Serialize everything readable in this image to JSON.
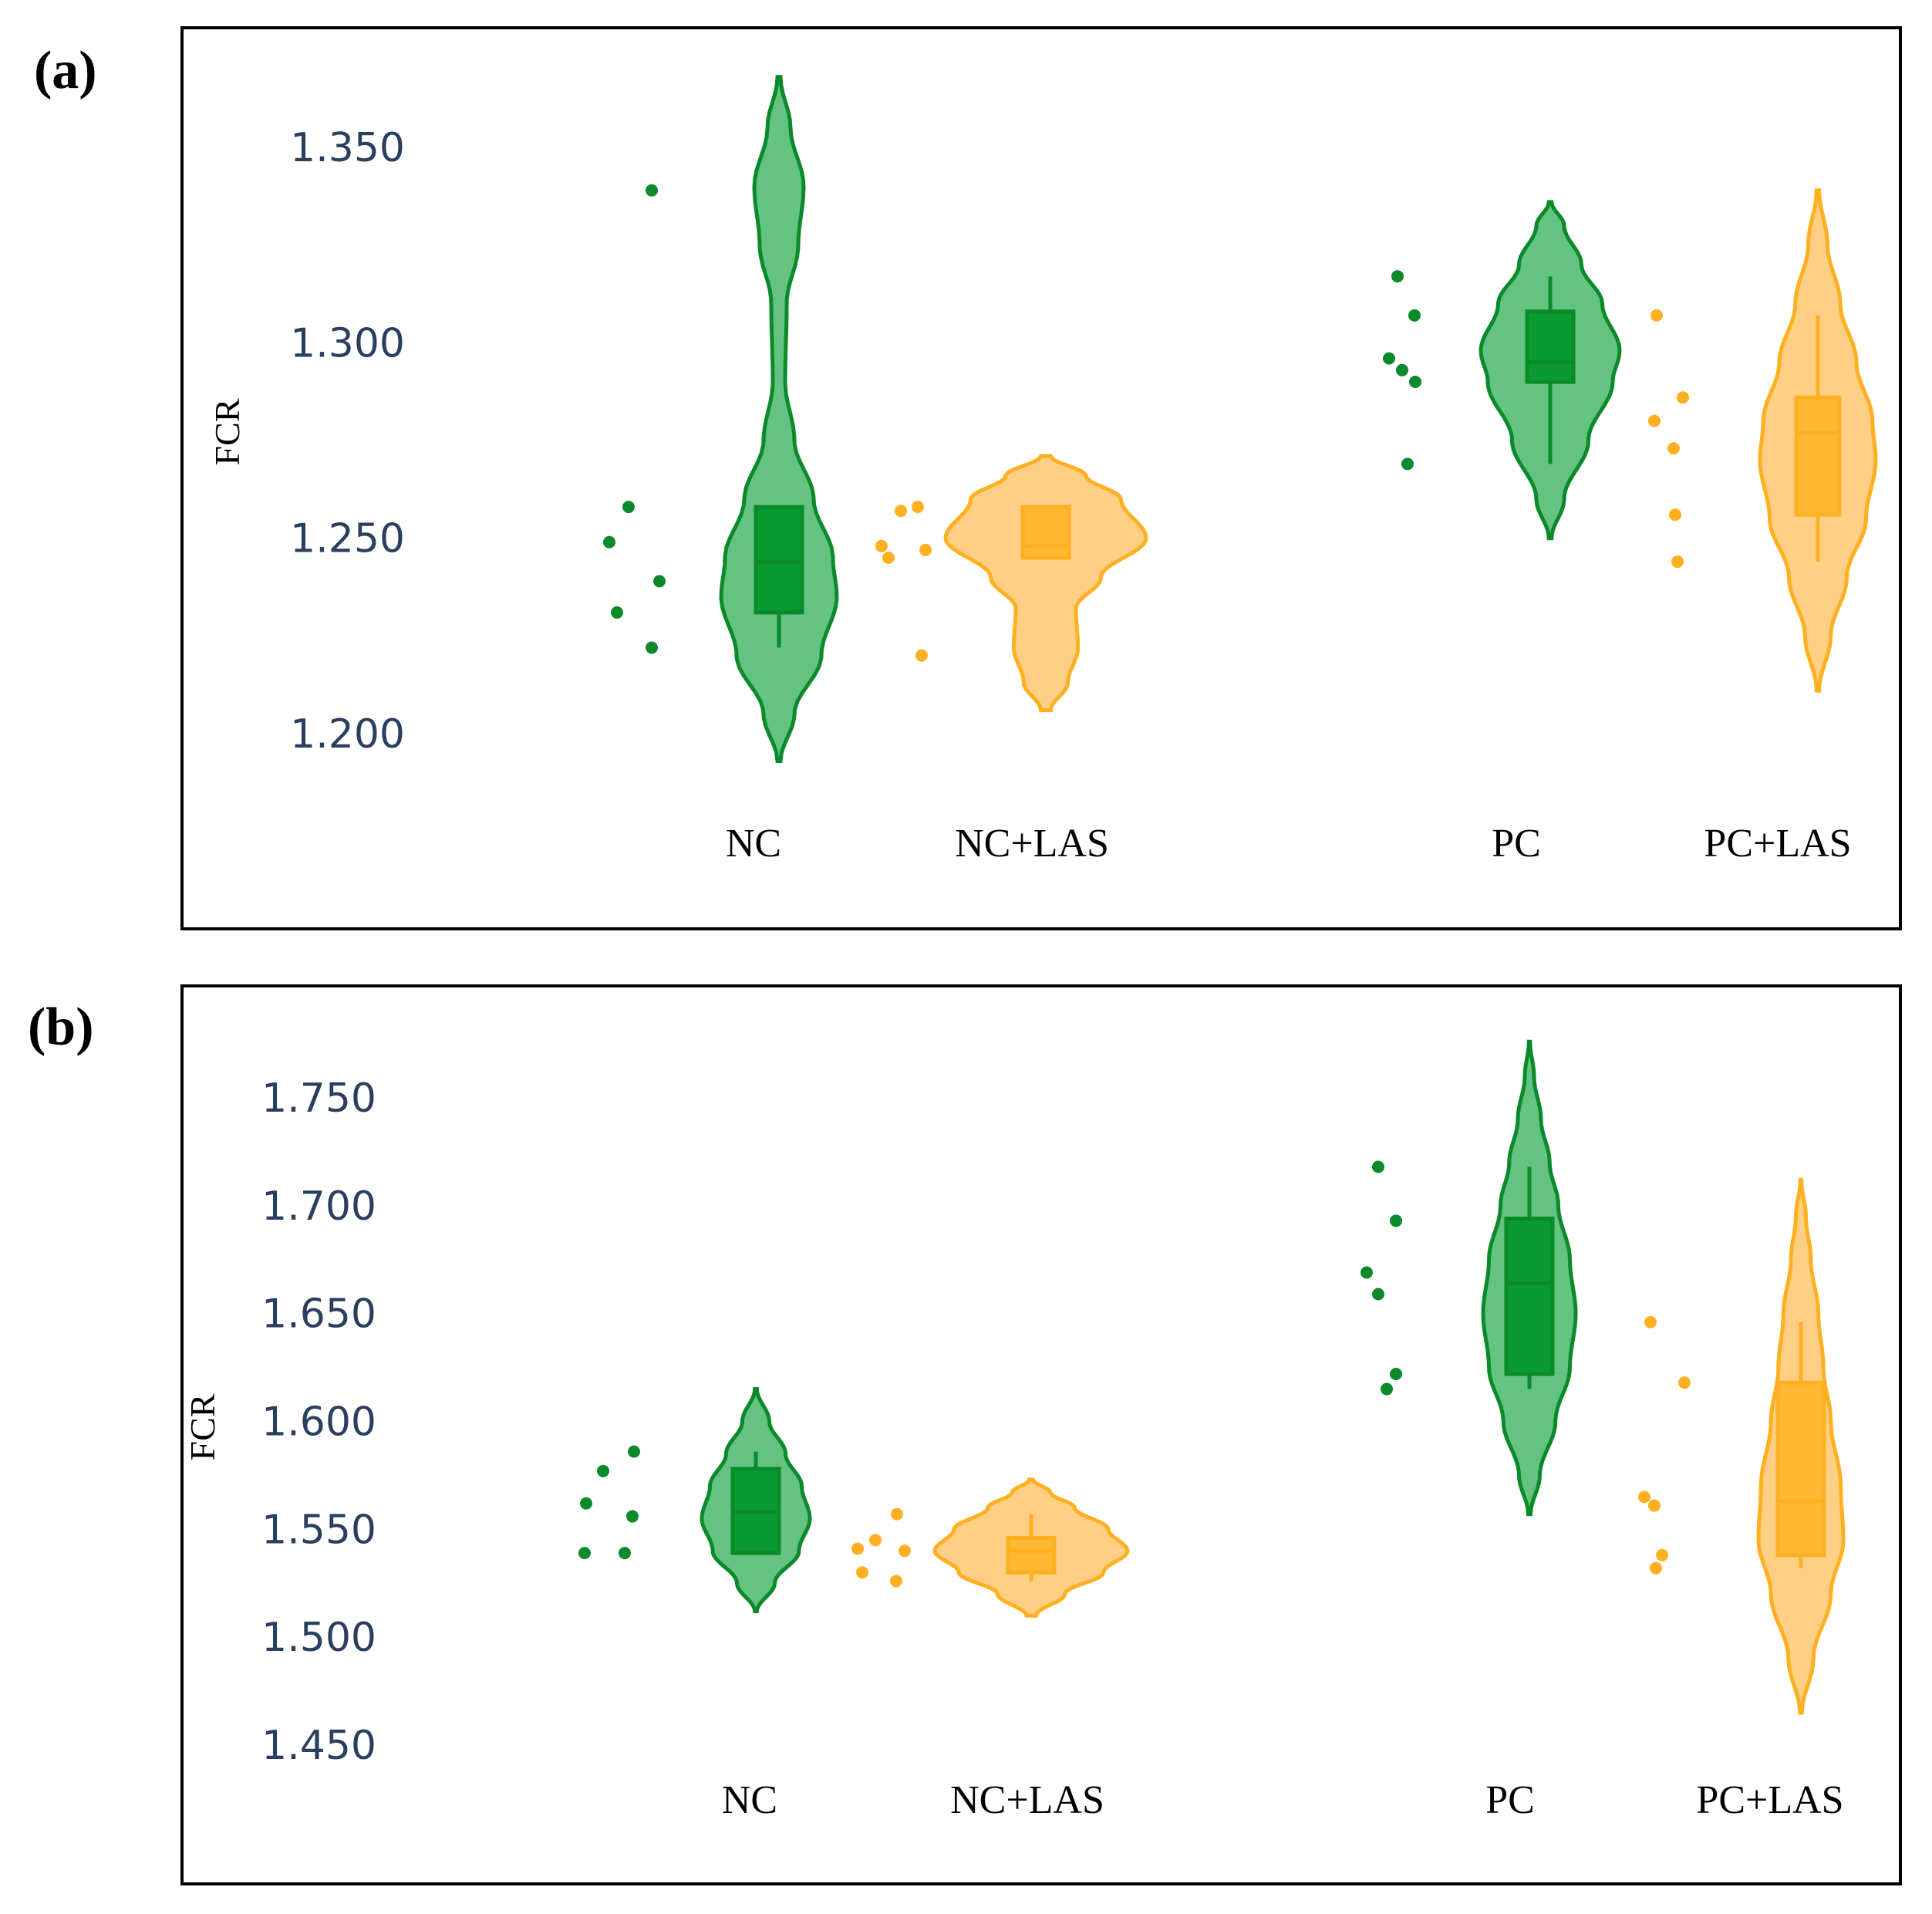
{
  "colors": {
    "nc_green_fill": "#5cc07a",
    "nc_green_line": "#0a8a2a",
    "nc_green_box": "#0a9a30",
    "las_orange_fill": "#ffcc80",
    "las_orange_line": "#ffb020",
    "las_orange_box": "#ffb833",
    "tick_color": "#2a3f5f"
  },
  "chart_data": [
    {
      "panel_label": "(a)",
      "type": "violin",
      "ylabel": "FCR",
      "ylim": [
        1.17,
        1.37
      ],
      "yticks": [
        "1.200",
        "1.250",
        "1.300",
        "1.350"
      ],
      "ytick_values": [
        1.2,
        1.25,
        1.3,
        1.35
      ],
      "categories": [
        "NC",
        "NC+LAS",
        "PC",
        "PC+LAS"
      ],
      "series": [
        {
          "name": "NC",
          "color": "green",
          "points": [
            1.339,
            1.258,
            1.249,
            1.239,
            1.231,
            1.222
          ],
          "box": {
            "q1": 1.231,
            "median": 1.244,
            "q3": 1.258,
            "whisker_low": 1.222,
            "whisker_high": 1.258
          },
          "violin_range": [
            1.193,
            1.368
          ],
          "density": [
            [
              1.193,
              0.02
            ],
            [
              1.205,
              0.2
            ],
            [
              1.22,
              0.55
            ],
            [
              1.235,
              0.75
            ],
            [
              1.245,
              0.7
            ],
            [
              1.26,
              0.45
            ],
            [
              1.275,
              0.2
            ],
            [
              1.29,
              0.08
            ],
            [
              1.31,
              0.1
            ],
            [
              1.325,
              0.25
            ],
            [
              1.34,
              0.32
            ],
            [
              1.355,
              0.15
            ],
            [
              1.368,
              0.02
            ]
          ]
        },
        {
          "name": "NC+LAS",
          "color": "orange",
          "points": [
            1.258,
            1.257,
            1.248,
            1.247,
            1.245,
            1.22
          ],
          "box": {
            "q1": 1.245,
            "median": 1.248,
            "q3": 1.258,
            "whisker_low": 1.245,
            "whisker_high": 1.258
          },
          "violin_range": [
            1.206,
            1.271
          ],
          "density": [
            [
              1.206,
              0.05
            ],
            [
              1.213,
              0.22
            ],
            [
              1.222,
              0.32
            ],
            [
              1.232,
              0.3
            ],
            [
              1.24,
              0.55
            ],
            [
              1.25,
              1.0
            ],
            [
              1.26,
              0.75
            ],
            [
              1.266,
              0.4
            ],
            [
              1.271,
              0.05
            ]
          ]
        },
        {
          "name": "PC",
          "color": "green",
          "points": [
            1.317,
            1.307,
            1.296,
            1.293,
            1.29,
            1.269
          ],
          "box": {
            "q1": 1.29,
            "median": 1.295,
            "q3": 1.308,
            "whisker_low": 1.269,
            "whisker_high": 1.317
          },
          "violin_range": [
            1.25,
            1.336
          ],
          "density": [
            [
              1.25,
              0.02
            ],
            [
              1.26,
              0.2
            ],
            [
              1.275,
              0.55
            ],
            [
              1.29,
              0.9
            ],
            [
              1.298,
              1.0
            ],
            [
              1.31,
              0.75
            ],
            [
              1.32,
              0.45
            ],
            [
              1.33,
              0.2
            ],
            [
              1.336,
              0.02
            ]
          ]
        },
        {
          "name": "PC+LAS",
          "color": "orange",
          "points": [
            1.307,
            1.286,
            1.28,
            1.273,
            1.256,
            1.244
          ],
          "box": {
            "q1": 1.256,
            "median": 1.277,
            "q3": 1.286,
            "whisker_low": 1.244,
            "whisker_high": 1.307
          },
          "violin_range": [
            1.211,
            1.339
          ],
          "density": [
            [
              1.211,
              0.02
            ],
            [
              1.225,
              0.2
            ],
            [
              1.24,
              0.45
            ],
            [
              1.255,
              0.75
            ],
            [
              1.27,
              0.9
            ],
            [
              1.28,
              0.85
            ],
            [
              1.295,
              0.6
            ],
            [
              1.31,
              0.35
            ],
            [
              1.325,
              0.15
            ],
            [
              1.339,
              0.02
            ]
          ]
        }
      ]
    },
    {
      "panel_label": "(b)",
      "type": "violin",
      "ylabel": "FCR",
      "ylim": [
        1.435,
        1.785
      ],
      "yticks": [
        "1.450",
        "1.500",
        "1.550",
        "1.600",
        "1.650",
        "1.700",
        "1.750"
      ],
      "ytick_values": [
        1.45,
        1.5,
        1.55,
        1.6,
        1.65,
        1.7,
        1.75
      ],
      "categories": [
        "NC",
        "NC+LAS",
        "PC",
        "PC+LAS"
      ],
      "series": [
        {
          "name": "NC",
          "color": "green",
          "points": [
            1.586,
            1.577,
            1.562,
            1.556,
            1.539,
            1.539
          ],
          "box": {
            "q1": 1.539,
            "median": 1.558,
            "q3": 1.578,
            "whisker_low": 1.539,
            "whisker_high": 1.586
          },
          "violin_range": [
            1.512,
            1.615
          ],
          "density": [
            [
              1.512,
              0.02
            ],
            [
              1.525,
              0.35
            ],
            [
              1.54,
              0.8
            ],
            [
              1.555,
              1.0
            ],
            [
              1.57,
              0.85
            ],
            [
              1.585,
              0.55
            ],
            [
              1.6,
              0.25
            ],
            [
              1.615,
              0.02
            ]
          ]
        },
        {
          "name": "NC+LAS",
          "color": "orange",
          "points": [
            1.557,
            1.545,
            1.541,
            1.54,
            1.53,
            1.526
          ],
          "box": {
            "q1": 1.53,
            "median": 1.54,
            "q3": 1.546,
            "whisker_low": 1.526,
            "whisker_high": 1.557
          },
          "violin_range": [
            1.51,
            1.573
          ],
          "density": [
            [
              1.51,
              0.05
            ],
            [
              1.52,
              0.35
            ],
            [
              1.53,
              0.75
            ],
            [
              1.54,
              1.0
            ],
            [
              1.55,
              0.8
            ],
            [
              1.56,
              0.45
            ],
            [
              1.567,
              0.2
            ],
            [
              1.573,
              0.02
            ]
          ]
        },
        {
          "name": "PC",
          "color": "green",
          "points": [
            1.718,
            1.693,
            1.669,
            1.659,
            1.622,
            1.615
          ],
          "box": {
            "q1": 1.622,
            "median": 1.664,
            "q3": 1.694,
            "whisker_low": 1.615,
            "whisker_high": 1.718
          },
          "violin_range": [
            1.557,
            1.776
          ],
          "density": [
            [
              1.557,
              0.02
            ],
            [
              1.575,
              0.18
            ],
            [
              1.6,
              0.45
            ],
            [
              1.625,
              0.7
            ],
            [
              1.65,
              0.8
            ],
            [
              1.675,
              0.7
            ],
            [
              1.7,
              0.5
            ],
            [
              1.72,
              0.35
            ],
            [
              1.74,
              0.2
            ],
            [
              1.76,
              0.08
            ],
            [
              1.776,
              0.01
            ]
          ]
        },
        {
          "name": "PC+LAS",
          "color": "orange",
          "points": [
            1.646,
            1.618,
            1.565,
            1.561,
            1.538,
            1.532
          ],
          "box": {
            "q1": 1.538,
            "median": 1.563,
            "q3": 1.618,
            "whisker_low": 1.532,
            "whisker_high": 1.646
          },
          "violin_range": [
            1.465,
            1.712
          ],
          "density": [
            [
              1.465,
              0.02
            ],
            [
              1.49,
              0.25
            ],
            [
              1.52,
              0.6
            ],
            [
              1.545,
              0.85
            ],
            [
              1.57,
              0.8
            ],
            [
              1.6,
              0.6
            ],
            [
              1.625,
              0.45
            ],
            [
              1.65,
              0.35
            ],
            [
              1.675,
              0.2
            ],
            [
              1.695,
              0.1
            ],
            [
              1.712,
              0.01
            ]
          ]
        }
      ]
    }
  ]
}
